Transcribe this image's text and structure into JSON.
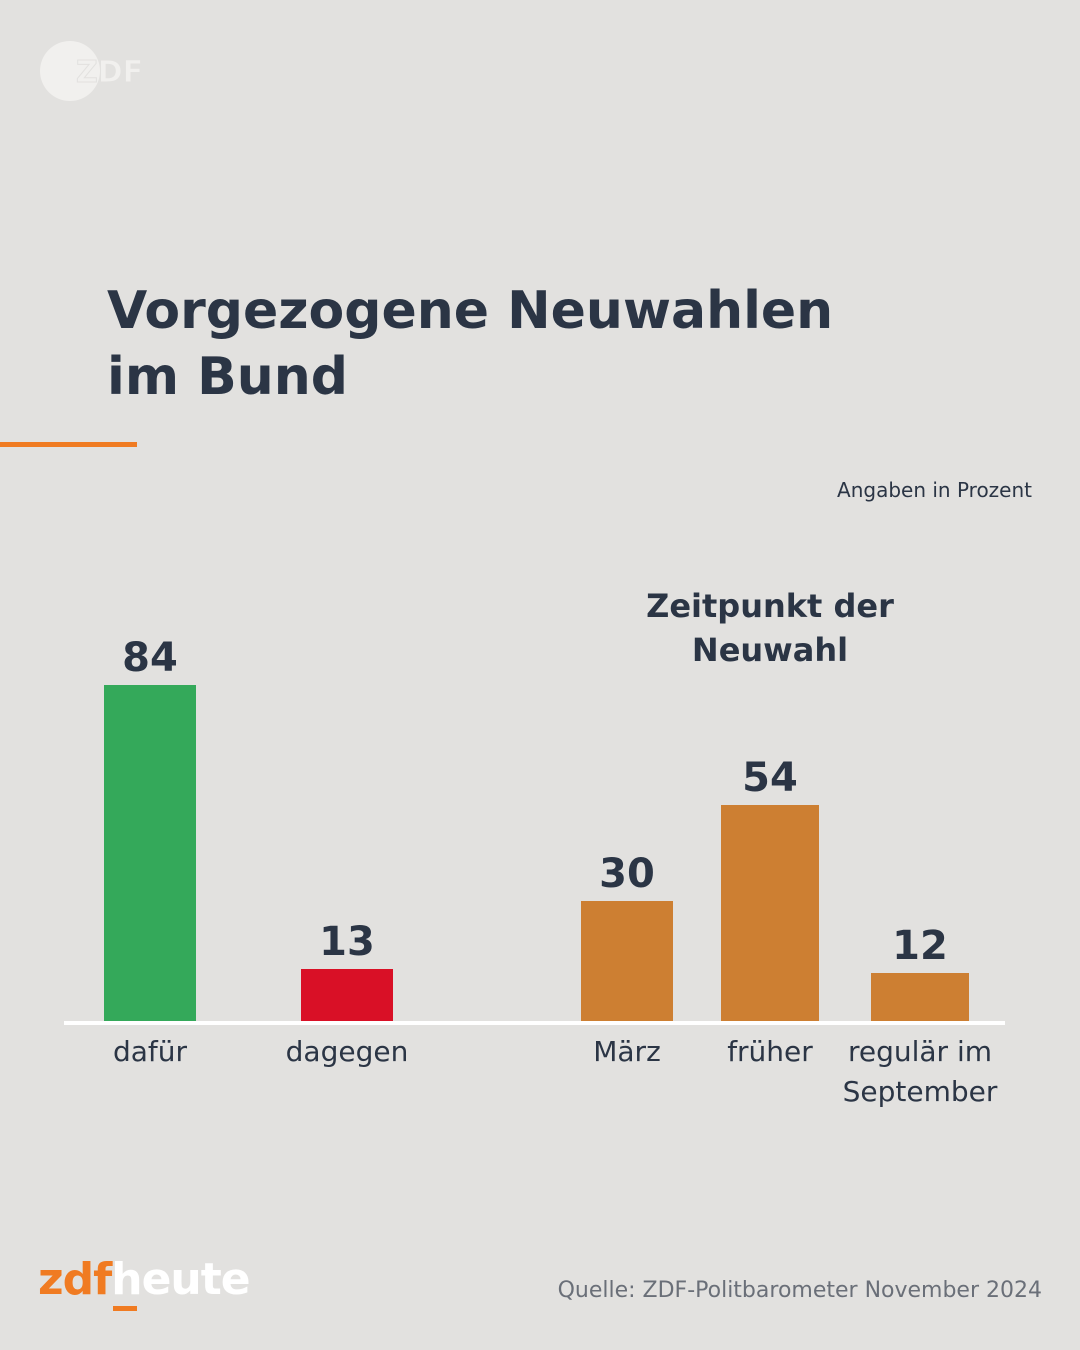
{
  "logo": {
    "name": "zdf-logo",
    "text": "ZDF"
  },
  "title": {
    "line1": "Vorgezogene Neuwahlen",
    "line2": "im Bund"
  },
  "unit_note": "Angaben in Prozent",
  "subgroup_title": {
    "line1": "Zeitpunkt der",
    "line2": "Neuwahl"
  },
  "colors": {
    "accent": "#f07b22",
    "dafuer": "#34a95a",
    "dagegen": "#d91026",
    "zeitpunkt": "#cd7f32",
    "text": "#2b3545",
    "baseline": "#ffffff"
  },
  "brand": {
    "part1": "zdf",
    "part2": "heute"
  },
  "source": "Quelle: ZDF-Politbarometer November 2024",
  "chart_data": {
    "type": "bar",
    "title": "Vorgezogene Neuwahlen im Bund",
    "unit": "Angaben in Prozent",
    "ylim": [
      0,
      100
    ],
    "groups": [
      {
        "name": "",
        "categories": [
          [
            "dafür"
          ],
          [
            "dagegen"
          ]
        ],
        "values": [
          84,
          13
        ],
        "colors": [
          "#34a95a",
          "#d91026"
        ]
      },
      {
        "name": "Zeitpunkt der Neuwahl",
        "categories": [
          [
            "März"
          ],
          [
            "früher"
          ],
          [
            "regulär im",
            "September"
          ]
        ],
        "values": [
          30,
          54,
          12
        ],
        "colors": [
          "#cd7f32",
          "#cd7f32",
          "#cd7f32"
        ]
      }
    ]
  }
}
